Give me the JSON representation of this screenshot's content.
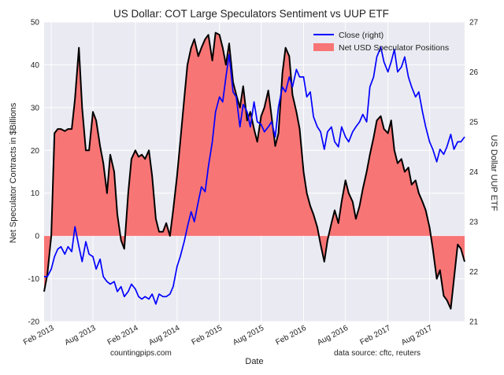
{
  "chart_data": {
    "type": "area",
    "title": "US Dollar: COT Large Speculators Sentiment vs UUP ETF",
    "xlabel": "Date",
    "ylabel_left": "Net Speculator Contracts in $Billions",
    "ylabel_right": "US Dollar UUP ETF",
    "left_ylim": [
      -20,
      50
    ],
    "right_ylim": [
      21,
      27
    ],
    "xlim": [
      "2013-01-01",
      "2017-12-31"
    ],
    "grid": true,
    "legend_position": "top-right",
    "left_yticks": [
      "-20",
      "-10",
      "0",
      "10",
      "20",
      "30",
      "40",
      "50"
    ],
    "right_yticks": [
      "21",
      "22",
      "23",
      "24",
      "25",
      "26",
      "27"
    ],
    "x_ticks": [
      {
        "label": "Feb 2013",
        "date": "2013-02-01"
      },
      {
        "label": "Aug 2013",
        "date": "2013-08-01"
      },
      {
        "label": "Feb 2014",
        "date": "2014-02-01"
      },
      {
        "label": "Aug 2014",
        "date": "2014-08-01"
      },
      {
        "label": "Feb 2015",
        "date": "2015-02-01"
      },
      {
        "label": "Aug 2015",
        "date": "2015-08-01"
      },
      {
        "label": "Feb 2016",
        "date": "2016-02-01"
      },
      {
        "label": "Aug 2016",
        "date": "2016-08-01"
      },
      {
        "label": "Feb 2017",
        "date": "2017-02-01"
      },
      {
        "label": "Aug 2017",
        "date": "2017-08-01"
      }
    ],
    "colors": {
      "close": "#0000ff",
      "positions_fill": "#f87575",
      "positions_line": "#000000",
      "plot_bg": "#eaeaf2",
      "grid": "#ffffff"
    },
    "series": [
      {
        "name": "Close (right)",
        "axis": "right",
        "points": [
          [
            "2013-01-01",
            21.9
          ],
          [
            "2013-01-15",
            21.9
          ],
          [
            "2013-02-01",
            22.05
          ],
          [
            "2013-02-15",
            22.3
          ],
          [
            "2013-03-01",
            22.45
          ],
          [
            "2013-03-15",
            22.5
          ],
          [
            "2013-04-01",
            22.35
          ],
          [
            "2013-04-15",
            22.5
          ],
          [
            "2013-05-01",
            22.4
          ],
          [
            "2013-05-15",
            22.9
          ],
          [
            "2013-06-01",
            22.5
          ],
          [
            "2013-06-15",
            22.2
          ],
          [
            "2013-07-01",
            22.6
          ],
          [
            "2013-07-15",
            22.35
          ],
          [
            "2013-08-01",
            22.3
          ],
          [
            "2013-08-15",
            22.05
          ],
          [
            "2013-09-01",
            22.25
          ],
          [
            "2013-09-15",
            21.9
          ],
          [
            "2013-10-01",
            21.8
          ],
          [
            "2013-10-15",
            21.75
          ],
          [
            "2013-11-01",
            21.8
          ],
          [
            "2013-11-15",
            21.6
          ],
          [
            "2013-12-01",
            21.7
          ],
          [
            "2013-12-15",
            21.5
          ],
          [
            "2014-01-01",
            21.6
          ],
          [
            "2014-01-15",
            21.75
          ],
          [
            "2014-02-01",
            21.65
          ],
          [
            "2014-02-15",
            21.5
          ],
          [
            "2014-03-01",
            21.45
          ],
          [
            "2014-03-15",
            21.5
          ],
          [
            "2014-04-01",
            21.45
          ],
          [
            "2014-04-15",
            21.55
          ],
          [
            "2014-05-01",
            21.35
          ],
          [
            "2014-05-15",
            21.55
          ],
          [
            "2014-06-01",
            21.5
          ],
          [
            "2014-06-15",
            21.5
          ],
          [
            "2014-07-01",
            21.55
          ],
          [
            "2014-07-15",
            21.7
          ],
          [
            "2014-08-01",
            22.1
          ],
          [
            "2014-08-15",
            22.3
          ],
          [
            "2014-09-01",
            22.6
          ],
          [
            "2014-09-15",
            22.9
          ],
          [
            "2014-10-01",
            23.2
          ],
          [
            "2014-10-15",
            23.0
          ],
          [
            "2014-11-01",
            23.4
          ],
          [
            "2014-11-15",
            23.7
          ],
          [
            "2014-12-01",
            23.6
          ],
          [
            "2014-12-15",
            24.1
          ],
          [
            "2015-01-01",
            24.6
          ],
          [
            "2015-01-15",
            25.2
          ],
          [
            "2015-02-01",
            25.5
          ],
          [
            "2015-02-15",
            25.4
          ],
          [
            "2015-03-01",
            25.9
          ],
          [
            "2015-03-15",
            26.35
          ],
          [
            "2015-04-01",
            25.6
          ],
          [
            "2015-04-15",
            25.5
          ],
          [
            "2015-05-01",
            24.9
          ],
          [
            "2015-05-15",
            25.35
          ],
          [
            "2015-06-01",
            25.2
          ],
          [
            "2015-06-15",
            24.9
          ],
          [
            "2015-07-01",
            25.4
          ],
          [
            "2015-07-15",
            25.0
          ],
          [
            "2015-08-01",
            24.95
          ],
          [
            "2015-08-15",
            24.8
          ],
          [
            "2015-09-01",
            24.9
          ],
          [
            "2015-09-15",
            25.0
          ],
          [
            "2015-10-01",
            24.7
          ],
          [
            "2015-10-15",
            25.3
          ],
          [
            "2015-11-01",
            25.7
          ],
          [
            "2015-11-15",
            25.6
          ],
          [
            "2015-12-01",
            25.9
          ],
          [
            "2015-12-15",
            25.7
          ],
          [
            "2016-01-01",
            26.05
          ],
          [
            "2016-01-15",
            25.9
          ],
          [
            "2016-02-01",
            25.9
          ],
          [
            "2016-02-15",
            25.5
          ],
          [
            "2016-03-01",
            25.6
          ],
          [
            "2016-03-15",
            25.1
          ],
          [
            "2016-04-01",
            24.9
          ],
          [
            "2016-04-15",
            24.8
          ],
          [
            "2016-05-01",
            24.45
          ],
          [
            "2016-05-15",
            24.8
          ],
          [
            "2016-06-01",
            24.9
          ],
          [
            "2016-06-15",
            24.6
          ],
          [
            "2016-07-01",
            24.5
          ],
          [
            "2016-07-15",
            24.9
          ],
          [
            "2016-08-01",
            24.7
          ],
          [
            "2016-08-15",
            24.6
          ],
          [
            "2016-09-01",
            24.8
          ],
          [
            "2016-09-15",
            24.9
          ],
          [
            "2016-10-01",
            25.0
          ],
          [
            "2016-10-15",
            25.15
          ],
          [
            "2016-11-01",
            25.0
          ],
          [
            "2016-11-15",
            25.7
          ],
          [
            "2016-12-01",
            25.9
          ],
          [
            "2016-12-15",
            26.3
          ],
          [
            "2017-01-01",
            26.5
          ],
          [
            "2017-01-15",
            26.2
          ],
          [
            "2017-02-01",
            26.0
          ],
          [
            "2017-02-15",
            26.2
          ],
          [
            "2017-03-01",
            26.45
          ],
          [
            "2017-03-15",
            26.0
          ],
          [
            "2017-04-01",
            26.1
          ],
          [
            "2017-04-15",
            26.3
          ],
          [
            "2017-05-01",
            25.9
          ],
          [
            "2017-05-15",
            25.7
          ],
          [
            "2017-06-01",
            25.5
          ],
          [
            "2017-06-15",
            25.6
          ],
          [
            "2017-07-01",
            25.2
          ],
          [
            "2017-07-15",
            24.9
          ],
          [
            "2017-08-01",
            24.6
          ],
          [
            "2017-08-15",
            24.45
          ],
          [
            "2017-09-01",
            24.2
          ],
          [
            "2017-09-15",
            24.45
          ],
          [
            "2017-10-01",
            24.35
          ],
          [
            "2017-10-15",
            24.5
          ],
          [
            "2017-11-01",
            24.75
          ],
          [
            "2017-11-15",
            24.45
          ],
          [
            "2017-12-01",
            24.6
          ],
          [
            "2017-12-15",
            24.6
          ],
          [
            "2017-12-31",
            24.7
          ]
        ]
      },
      {
        "name": "Net USD Speculator Positions",
        "axis": "left",
        "points": [
          [
            "2013-01-01",
            -13
          ],
          [
            "2013-01-15",
            -9
          ],
          [
            "2013-02-01",
            0
          ],
          [
            "2013-02-15",
            24
          ],
          [
            "2013-03-01",
            25
          ],
          [
            "2013-03-15",
            25
          ],
          [
            "2013-04-01",
            24.5
          ],
          [
            "2013-04-15",
            25
          ],
          [
            "2013-05-01",
            25
          ],
          [
            "2013-05-15",
            32
          ],
          [
            "2013-06-01",
            44
          ],
          [
            "2013-06-15",
            30
          ],
          [
            "2013-07-01",
            20
          ],
          [
            "2013-07-15",
            20
          ],
          [
            "2013-08-01",
            29
          ],
          [
            "2013-08-15",
            27
          ],
          [
            "2013-09-01",
            21
          ],
          [
            "2013-09-15",
            17
          ],
          [
            "2013-10-01",
            10
          ],
          [
            "2013-10-15",
            19
          ],
          [
            "2013-11-01",
            15
          ],
          [
            "2013-11-15",
            5
          ],
          [
            "2013-12-01",
            -1
          ],
          [
            "2013-12-15",
            -3
          ],
          [
            "2014-01-01",
            10
          ],
          [
            "2014-01-15",
            18
          ],
          [
            "2014-02-01",
            20
          ],
          [
            "2014-02-15",
            18.5
          ],
          [
            "2014-03-01",
            19
          ],
          [
            "2014-03-15",
            18
          ],
          [
            "2014-04-01",
            20
          ],
          [
            "2014-04-15",
            14
          ],
          [
            "2014-05-01",
            4
          ],
          [
            "2014-05-15",
            1
          ],
          [
            "2014-06-01",
            1
          ],
          [
            "2014-06-15",
            3
          ],
          [
            "2014-07-01",
            0
          ],
          [
            "2014-07-15",
            6
          ],
          [
            "2014-08-01",
            14
          ],
          [
            "2014-08-15",
            22
          ],
          [
            "2014-09-01",
            32
          ],
          [
            "2014-09-15",
            40
          ],
          [
            "2014-10-01",
            44
          ],
          [
            "2014-10-15",
            46
          ],
          [
            "2014-11-01",
            42
          ],
          [
            "2014-11-15",
            44
          ],
          [
            "2014-12-01",
            46
          ],
          [
            "2014-12-15",
            47
          ],
          [
            "2015-01-01",
            41
          ],
          [
            "2015-01-15",
            47.5
          ],
          [
            "2015-02-01",
            47
          ],
          [
            "2015-02-15",
            44
          ],
          [
            "2015-03-01",
            40
          ],
          [
            "2015-03-15",
            45
          ],
          [
            "2015-04-01",
            36
          ],
          [
            "2015-04-15",
            33
          ],
          [
            "2015-05-01",
            30
          ],
          [
            "2015-05-15",
            35
          ],
          [
            "2015-06-01",
            27
          ],
          [
            "2015-06-15",
            29
          ],
          [
            "2015-07-01",
            25
          ],
          [
            "2015-07-15",
            22
          ],
          [
            "2015-08-01",
            28
          ],
          [
            "2015-08-15",
            30
          ],
          [
            "2015-09-01",
            34
          ],
          [
            "2015-09-15",
            28
          ],
          [
            "2015-10-01",
            21
          ],
          [
            "2015-10-15",
            24
          ],
          [
            "2015-11-01",
            38
          ],
          [
            "2015-11-15",
            44
          ],
          [
            "2015-12-01",
            42
          ],
          [
            "2015-12-15",
            33
          ],
          [
            "2016-01-01",
            29
          ],
          [
            "2016-01-15",
            25
          ],
          [
            "2016-02-01",
            15
          ],
          [
            "2016-02-15",
            10
          ],
          [
            "2016-03-01",
            7
          ],
          [
            "2016-03-15",
            5
          ],
          [
            "2016-04-01",
            2
          ],
          [
            "2016-04-15",
            -2
          ],
          [
            "2016-05-01",
            -6
          ],
          [
            "2016-05-15",
            -1
          ],
          [
            "2016-06-01",
            3
          ],
          [
            "2016-06-15",
            6
          ],
          [
            "2016-07-01",
            3
          ],
          [
            "2016-07-15",
            8
          ],
          [
            "2016-08-01",
            13
          ],
          [
            "2016-08-15",
            10
          ],
          [
            "2016-09-01",
            8
          ],
          [
            "2016-09-15",
            4
          ],
          [
            "2016-10-01",
            7
          ],
          [
            "2016-10-15",
            11
          ],
          [
            "2016-11-01",
            15
          ],
          [
            "2016-11-15",
            19
          ],
          [
            "2016-12-01",
            23
          ],
          [
            "2016-12-15",
            27
          ],
          [
            "2017-01-01",
            28
          ],
          [
            "2017-01-15",
            25
          ],
          [
            "2017-02-01",
            24
          ],
          [
            "2017-02-15",
            27
          ],
          [
            "2017-03-01",
            20
          ],
          [
            "2017-03-15",
            17
          ],
          [
            "2017-04-01",
            18
          ],
          [
            "2017-04-15",
            15
          ],
          [
            "2017-05-01",
            16
          ],
          [
            "2017-05-15",
            12
          ],
          [
            "2017-06-01",
            13
          ],
          [
            "2017-06-15",
            10
          ],
          [
            "2017-07-01",
            8
          ],
          [
            "2017-07-15",
            6
          ],
          [
            "2017-08-01",
            2
          ],
          [
            "2017-08-15",
            -3
          ],
          [
            "2017-09-01",
            -10
          ],
          [
            "2017-09-15",
            -8
          ],
          [
            "2017-10-01",
            -14
          ],
          [
            "2017-10-15",
            -15
          ],
          [
            "2017-11-01",
            -17
          ],
          [
            "2017-11-15",
            -10
          ],
          [
            "2017-12-01",
            -2
          ],
          [
            "2017-12-15",
            -3
          ],
          [
            "2017-12-31",
            -6
          ]
        ]
      }
    ],
    "annotations": [
      {
        "text": "countingpips.com",
        "position": "bottom-left"
      },
      {
        "text": "data source: cftc, reuters",
        "position": "bottom-right"
      }
    ]
  }
}
